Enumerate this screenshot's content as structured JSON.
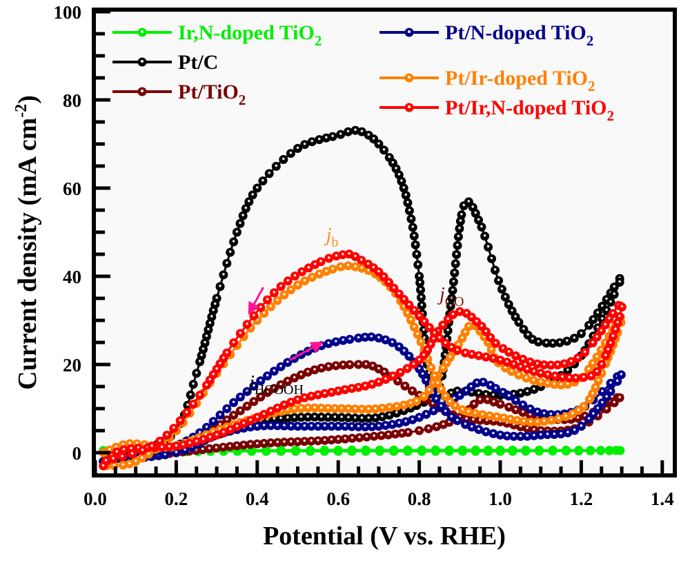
{
  "chart_data": {
    "type": "line",
    "title": "",
    "xlabel": "Potential (V vs. RHE)",
    "ylabel": "Current density (mA cm-2)",
    "ylabel_parts": {
      "main": "Current density (mA cm",
      "sup": "-2",
      "close": ")"
    },
    "xlim": [
      0.0,
      1.4
    ],
    "ylim": [
      -5,
      100
    ],
    "xticks": [
      "0.0",
      "0.2",
      "0.4",
      "0.6",
      "0.8",
      "1.0",
      "1.2",
      "1.4"
    ],
    "xtick_values": [
      0.0,
      0.2,
      0.4,
      0.6,
      0.8,
      1.0,
      1.2,
      1.4
    ],
    "yticks": [
      "0",
      "20",
      "40",
      "60",
      "80",
      "100"
    ],
    "ytick_values": [
      0,
      20,
      40,
      60,
      80,
      100
    ],
    "grid": false,
    "legend_placement": "top",
    "series": [
      {
        "name": "Ir,N-doped TiO2",
        "label_main": "Ir,N-doped TiO",
        "label_sub": "2",
        "color": "#00ee00",
        "forward": [
          [
            0.02,
            0.5
          ],
          [
            0.2,
            0.5
          ],
          [
            0.6,
            0.6
          ],
          [
            1.0,
            0.6
          ],
          [
            1.3,
            0.5
          ]
        ],
        "backward": [
          [
            1.3,
            0.5
          ],
          [
            1.0,
            0.3
          ],
          [
            0.6,
            0.3
          ],
          [
            0.2,
            0.2
          ],
          [
            0.02,
            -0.5
          ]
        ]
      },
      {
        "name": "Pt/C",
        "label_main": "Pt/C",
        "label_sub": "",
        "color": "#000000",
        "forward": [
          [
            0.02,
            -2
          ],
          [
            0.1,
            0
          ],
          [
            0.2,
            1
          ],
          [
            0.3,
            4
          ],
          [
            0.4,
            7
          ],
          [
            0.5,
            8
          ],
          [
            0.6,
            8
          ],
          [
            0.7,
            8
          ],
          [
            0.8,
            11
          ],
          [
            0.85,
            15
          ],
          [
            0.88,
            35
          ],
          [
            0.91,
            56
          ],
          [
            0.95,
            52
          ],
          [
            1.0,
            38
          ],
          [
            1.05,
            29
          ],
          [
            1.1,
            25
          ],
          [
            1.2,
            27
          ],
          [
            1.3,
            40
          ]
        ],
        "backward": [
          [
            1.3,
            37
          ],
          [
            1.2,
            22
          ],
          [
            1.1,
            15
          ],
          [
            1.0,
            13
          ],
          [
            0.9,
            14
          ],
          [
            0.85,
            13
          ],
          [
            0.82,
            20
          ],
          [
            0.8,
            40
          ],
          [
            0.78,
            53
          ],
          [
            0.75,
            63
          ],
          [
            0.7,
            70
          ],
          [
            0.65,
            73
          ],
          [
            0.6,
            72
          ],
          [
            0.5,
            69
          ],
          [
            0.4,
            60
          ],
          [
            0.35,
            50
          ],
          [
            0.3,
            35
          ],
          [
            0.25,
            18
          ],
          [
            0.2,
            5
          ],
          [
            0.1,
            0
          ],
          [
            0.02,
            -2
          ]
        ]
      },
      {
        "name": "Pt/TiO2",
        "label_main": "Pt/TiO",
        "label_sub": "2",
        "color": "#7a0000",
        "forward": [
          [
            0.02,
            -2
          ],
          [
            0.2,
            0
          ],
          [
            0.4,
            2
          ],
          [
            0.6,
            3
          ],
          [
            0.8,
            5
          ],
          [
            0.9,
            8
          ],
          [
            0.95,
            12
          ],
          [
            1.0,
            11
          ],
          [
            1.1,
            8
          ],
          [
            1.2,
            8
          ],
          [
            1.3,
            13
          ]
        ],
        "backward": [
          [
            1.3,
            11
          ],
          [
            1.2,
            6
          ],
          [
            1.1,
            5
          ],
          [
            1.0,
            7
          ],
          [
            0.9,
            8
          ],
          [
            0.8,
            13
          ],
          [
            0.7,
            19
          ],
          [
            0.65,
            20
          ],
          [
            0.55,
            19
          ],
          [
            0.45,
            15
          ],
          [
            0.35,
            9
          ],
          [
            0.25,
            3
          ],
          [
            0.15,
            0
          ],
          [
            0.02,
            -2
          ]
        ]
      },
      {
        "name": "Pt/N-doped TiO2",
        "label_main": "Pt/N-doped TiO",
        "label_sub": "2",
        "color": "#00008b",
        "forward": [
          [
            0.02,
            -2
          ],
          [
            0.2,
            0
          ],
          [
            0.3,
            4
          ],
          [
            0.4,
            6
          ],
          [
            0.5,
            6
          ],
          [
            0.6,
            6
          ],
          [
            0.7,
            6
          ],
          [
            0.8,
            8
          ],
          [
            0.9,
            13
          ],
          [
            0.95,
            16
          ],
          [
            1.0,
            14
          ],
          [
            1.1,
            9
          ],
          [
            1.2,
            10
          ],
          [
            1.3,
            18
          ]
        ],
        "backward": [
          [
            1.3,
            16
          ],
          [
            1.2,
            6
          ],
          [
            1.1,
            4
          ],
          [
            1.0,
            4
          ],
          [
            0.9,
            7
          ],
          [
            0.85,
            11
          ],
          [
            0.8,
            19
          ],
          [
            0.75,
            24
          ],
          [
            0.7,
            26
          ],
          [
            0.65,
            26
          ],
          [
            0.55,
            24
          ],
          [
            0.45,
            19
          ],
          [
            0.35,
            12
          ],
          [
            0.25,
            4
          ],
          [
            0.15,
            0
          ],
          [
            0.02,
            -2
          ]
        ]
      },
      {
        "name": "Pt/Ir-doped TiO2",
        "label_main": "Pt/Ir-doped TiO",
        "label_sub": "2",
        "color": "#ff8000",
        "forward": [
          [
            0.02,
            0
          ],
          [
            0.08,
            2
          ],
          [
            0.15,
            1.5
          ],
          [
            0.2,
            1.5
          ],
          [
            0.3,
            5
          ],
          [
            0.4,
            8
          ],
          [
            0.5,
            10
          ],
          [
            0.6,
            10
          ],
          [
            0.7,
            10
          ],
          [
            0.8,
            12
          ],
          [
            0.85,
            18
          ],
          [
            0.9,
            25
          ],
          [
            0.93,
            29
          ],
          [
            0.97,
            25
          ],
          [
            1.0,
            20
          ],
          [
            1.1,
            16
          ],
          [
            1.2,
            17
          ],
          [
            1.3,
            31
          ]
        ],
        "backward": [
          [
            1.3,
            30
          ],
          [
            1.25,
            18
          ],
          [
            1.2,
            10
          ],
          [
            1.1,
            7
          ],
          [
            1.0,
            8
          ],
          [
            0.9,
            10
          ],
          [
            0.85,
            15
          ],
          [
            0.8,
            26
          ],
          [
            0.75,
            35
          ],
          [
            0.7,
            40
          ],
          [
            0.65,
            42
          ],
          [
            0.6,
            42
          ],
          [
            0.5,
            38
          ],
          [
            0.4,
            30
          ],
          [
            0.3,
            18
          ],
          [
            0.2,
            5
          ],
          [
            0.1,
            -2
          ],
          [
            0.02,
            -3
          ]
        ]
      },
      {
        "name": "Pt/Ir,N-doped TiO2",
        "label_main": "Pt/Ir,N-doped TiO",
        "label_sub": "2",
        "color": "#ff0000",
        "forward": [
          [
            0.02,
            -3
          ],
          [
            0.05,
            0
          ],
          [
            0.1,
            1
          ],
          [
            0.2,
            1.5
          ],
          [
            0.3,
            4
          ],
          [
            0.4,
            8
          ],
          [
            0.5,
            12
          ],
          [
            0.6,
            14
          ],
          [
            0.7,
            16
          ],
          [
            0.8,
            21
          ],
          [
            0.85,
            28
          ],
          [
            0.9,
            32
          ],
          [
            0.95,
            29
          ],
          [
            1.0,
            24
          ],
          [
            1.1,
            20
          ],
          [
            1.2,
            22
          ],
          [
            1.3,
            34
          ]
        ],
        "backward": [
          [
            1.3,
            32
          ],
          [
            1.25,
            20
          ],
          [
            1.2,
            17
          ],
          [
            1.1,
            18
          ],
          [
            1.0,
            21
          ],
          [
            0.9,
            23
          ],
          [
            0.85,
            26
          ],
          [
            0.8,
            31
          ],
          [
            0.75,
            36
          ],
          [
            0.7,
            41
          ],
          [
            0.65,
            44
          ],
          [
            0.62,
            45
          ],
          [
            0.55,
            43
          ],
          [
            0.45,
            37
          ],
          [
            0.35,
            26
          ],
          [
            0.25,
            12
          ],
          [
            0.15,
            2
          ],
          [
            0.02,
            -2
          ]
        ]
      }
    ],
    "annotations": [
      {
        "text": "j",
        "sub": "b",
        "x": 0.57,
        "y": 48,
        "color": "#ff8c1a"
      },
      {
        "text": "j",
        "sub": "CO",
        "x": 0.85,
        "y": 34.5,
        "color": "#7a1010"
      },
      {
        "text": "j",
        "sub": "HCOOH",
        "x": 0.38,
        "y": 14.5,
        "color": "#000000"
      }
    ],
    "arrows": [
      {
        "direction": "backward-scan",
        "from": [
          0.415,
          37.5
        ],
        "to": [
          0.385,
          32.5
        ],
        "color": "#ff1493"
      },
      {
        "direction": "forward-scan",
        "from": [
          0.48,
          21
        ],
        "to": [
          0.55,
          24.5
        ],
        "color": "#ff1493"
      }
    ]
  }
}
